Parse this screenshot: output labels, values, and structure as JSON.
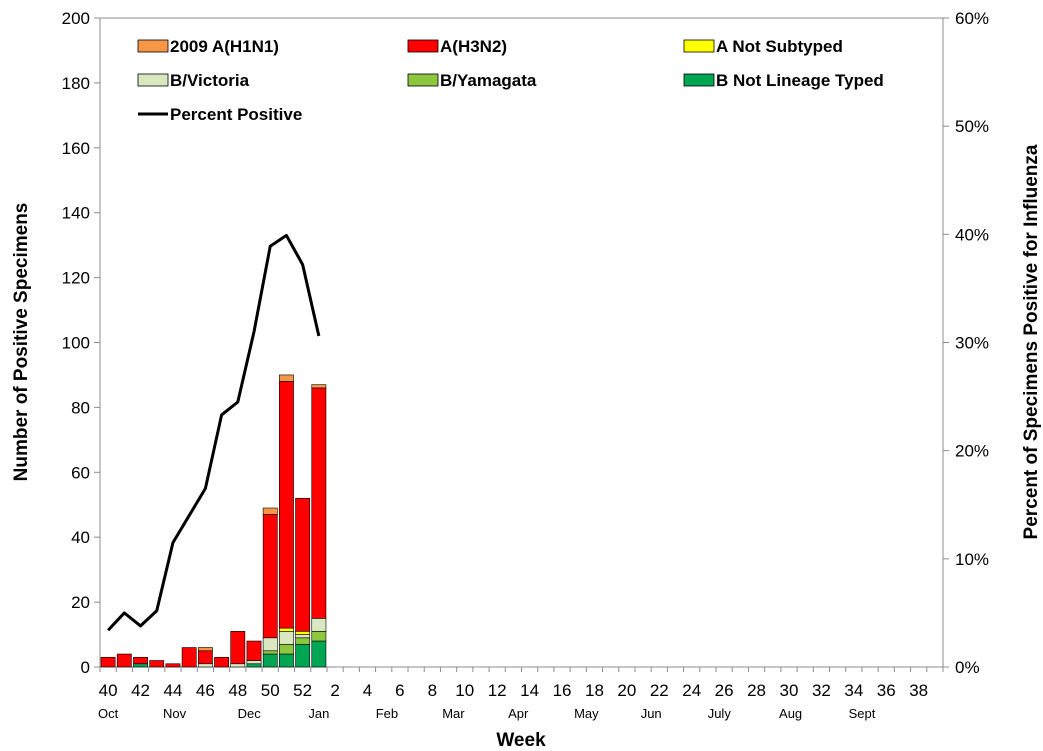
{
  "chart_data": {
    "type": "bar",
    "stacked": true,
    "x_tick_labels": [
      "40",
      "42",
      "44",
      "46",
      "48",
      "50",
      "52",
      "2",
      "4",
      "6",
      "8",
      "10",
      "12",
      "14",
      "16",
      "18",
      "20",
      "22",
      "24",
      "26",
      "28",
      "30",
      "32",
      "34",
      "36",
      "38"
    ],
    "months": [
      "Oct",
      "Nov",
      "Dec",
      "Jan",
      "Feb",
      "Mar",
      "Apr",
      "May",
      "Jun",
      "July",
      "Aug",
      "Sept"
    ],
    "xlabel": "Week",
    "ylabel_left": "Number of Positive Specimens",
    "ylabel_right": "Percent of Specimens Positive for Influenza",
    "ylim_left": [
      0,
      200
    ],
    "y_ticks_left": [
      "0",
      "20",
      "40",
      "60",
      "80",
      "100",
      "120",
      "140",
      "160",
      "180",
      "200"
    ],
    "ylim_right": [
      0,
      60
    ],
    "y_ticks_right": [
      "0%",
      "10%",
      "20%",
      "30%",
      "40%",
      "50%",
      "60%"
    ],
    "weeks": [
      "40",
      "41",
      "42",
      "43",
      "44",
      "45",
      "46",
      "47",
      "48",
      "49",
      "50",
      "51",
      "52",
      "1"
    ],
    "series": [
      {
        "name": "B Not Lineage Typed",
        "color": "#00a651",
        "values": [
          0,
          0,
          1,
          0,
          0,
          0,
          0,
          0,
          0,
          1,
          4,
          4,
          7,
          8
        ]
      },
      {
        "name": "B/Yamagata",
        "color": "#8dc63f",
        "values": [
          0,
          0,
          0,
          0,
          0,
          0,
          0,
          0,
          0,
          0,
          1,
          3,
          2,
          3
        ]
      },
      {
        "name": "B/Victoria",
        "color": "#d9e8c0",
        "values": [
          0,
          0,
          0,
          0,
          0,
          0,
          1,
          0,
          1,
          1,
          4,
          4,
          1,
          4
        ]
      },
      {
        "name": "A Not Subtyped",
        "color": "#ffff00",
        "values": [
          0,
          0,
          0,
          0,
          0,
          0,
          0,
          0,
          0,
          0,
          0,
          1,
          1,
          0
        ]
      },
      {
        "name": "A(H3N2)",
        "color": "#ff0000",
        "values": [
          3,
          4,
          2,
          2,
          1,
          6,
          4,
          3,
          10,
          6,
          38,
          76,
          41,
          71
        ]
      },
      {
        "name": "2009 A(H1N1)",
        "color": "#f79646",
        "values": [
          0,
          0,
          0,
          0,
          0,
          0,
          1,
          0,
          0,
          0,
          2,
          2,
          0,
          1
        ]
      }
    ],
    "line_series": {
      "name": "Percent Positive",
      "color": "#000000",
      "values": [
        3.4,
        5.0,
        3.8,
        5.2,
        11.5,
        14.0,
        16.5,
        23.3,
        24.5,
        31.0,
        38.9,
        39.9,
        37.2,
        30.6
      ]
    },
    "legend": [
      {
        "label": "2009 A(H1N1)",
        "color": "#f79646",
        "kind": "box"
      },
      {
        "label": "A(H3N2)",
        "color": "#ff0000",
        "kind": "box"
      },
      {
        "label": "A Not Subtyped",
        "color": "#ffff00",
        "kind": "box"
      },
      {
        "label": "B/Victoria",
        "color": "#d9e8c0",
        "kind": "box"
      },
      {
        "label": "B/Yamagata",
        "color": "#8dc63f",
        "kind": "box"
      },
      {
        "label": "B Not Lineage Typed",
        "color": "#00a651",
        "kind": "box"
      },
      {
        "label": "Percent Positive",
        "color": "#000000",
        "kind": "line"
      }
    ],
    "legend_position": "top-left",
    "grid": false
  }
}
